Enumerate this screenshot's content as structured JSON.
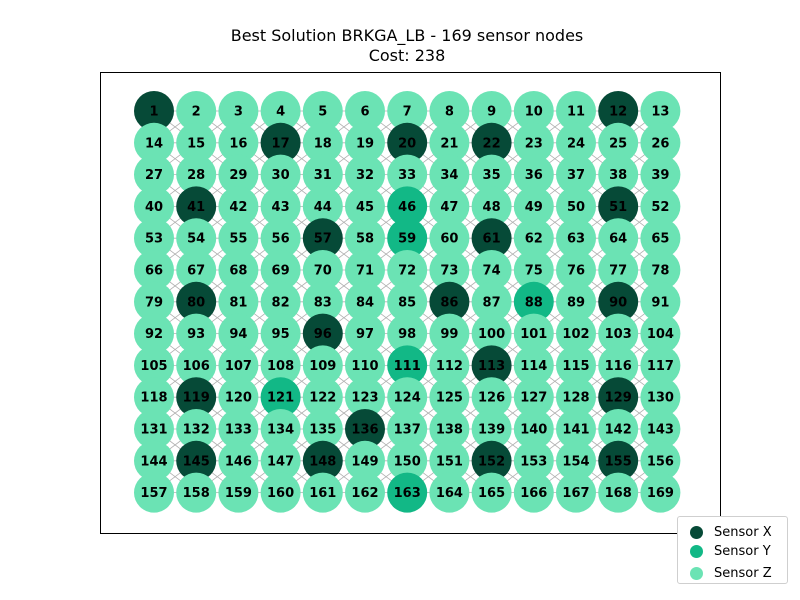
{
  "title": "Best Solution BRKGA_LB - 169 sensor nodes",
  "subtitle": "Cost: 238",
  "colors": {
    "sensor_x": "#064a37",
    "sensor_y": "#12b886",
    "sensor_z": "#6be3b4",
    "edge": "#b0b0b0",
    "frame": "#000000"
  },
  "grid": {
    "rows": 13,
    "cols": 13
  },
  "sensor_x_nodes": [
    1,
    12,
    17,
    20,
    22,
    41,
    51,
    57,
    61,
    80,
    86,
    90,
    96,
    113,
    119,
    129,
    136,
    145,
    148,
    152,
    155
  ],
  "sensor_y_nodes": [
    46,
    59,
    88,
    111,
    121,
    163
  ],
  "legend": [
    {
      "label": "Sensor X",
      "type": "sensor_x"
    },
    {
      "label": "Sensor Y",
      "type": "sensor_y"
    },
    {
      "label": "Sensor Z",
      "type": "sensor_z"
    }
  ]
}
